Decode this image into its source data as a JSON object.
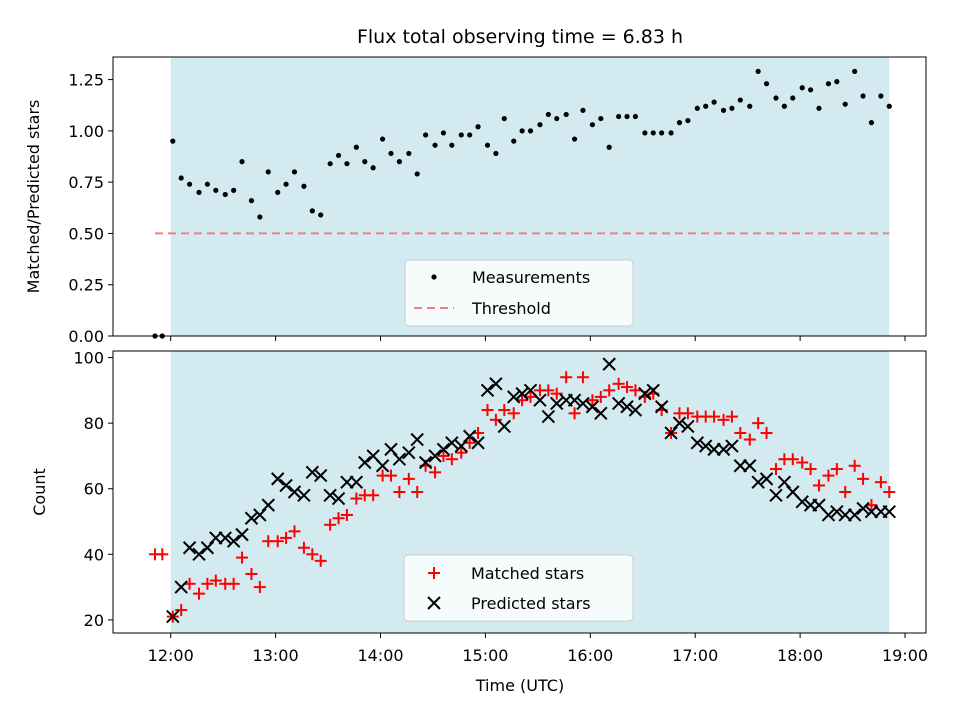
{
  "chart_data": [
    {
      "type": "scatter",
      "title": "Flux total observing time = 6.83 h",
      "xlabel": "",
      "ylabel": "Matched/Predicted stars",
      "xlim": [
        11.45,
        19.2
      ],
      "ylim": [
        0,
        1.36
      ],
      "yticks": [
        "0.00",
        "0.25",
        "0.50",
        "0.75",
        "1.00",
        "1.25"
      ],
      "ytick_values": [
        0,
        0.25,
        0.5,
        0.75,
        1.0,
        1.25
      ],
      "observing_window": [
        12.0,
        18.85
      ],
      "window_color": "#d3eaf1",
      "legend": {
        "placement": "lower center",
        "entries": [
          "Measurements",
          "Threshold"
        ]
      },
      "series": [
        {
          "name": "Measurements",
          "marker": "dot",
          "color": "#000000",
          "x": [
            11.85,
            11.92,
            12.02,
            12.1,
            12.18,
            12.27,
            12.35,
            12.43,
            12.52,
            12.6,
            12.68,
            12.77,
            12.85,
            12.93,
            13.02,
            13.1,
            13.18,
            13.27,
            13.35,
            13.43,
            13.52,
            13.6,
            13.68,
            13.77,
            13.85,
            13.93,
            14.02,
            14.1,
            14.18,
            14.27,
            14.35,
            14.43,
            14.52,
            14.6,
            14.68,
            14.77,
            14.85,
            14.93,
            15.02,
            15.1,
            15.18,
            15.27,
            15.35,
            15.43,
            15.52,
            15.6,
            15.68,
            15.77,
            15.85,
            15.93,
            16.02,
            16.1,
            16.18,
            16.27,
            16.35,
            16.43,
            16.52,
            16.6,
            16.68,
            16.77,
            16.85,
            16.93,
            17.02,
            17.1,
            17.18,
            17.27,
            17.35,
            17.43,
            17.52,
            17.6,
            17.68,
            17.77,
            17.85,
            17.93,
            18.02,
            18.1,
            18.18,
            18.27,
            18.35,
            18.43,
            18.52,
            18.6,
            18.68,
            18.77,
            18.85
          ],
          "y": [
            0.0,
            0.0,
            0.95,
            0.77,
            0.74,
            0.7,
            0.74,
            0.71,
            0.69,
            0.71,
            0.85,
            0.66,
            0.58,
            0.8,
            0.7,
            0.74,
            0.8,
            0.73,
            0.61,
            0.59,
            0.84,
            0.88,
            0.84,
            0.92,
            0.85,
            0.82,
            0.96,
            0.89,
            0.85,
            0.89,
            0.79,
            0.98,
            0.93,
            0.99,
            0.93,
            0.98,
            0.98,
            1.02,
            0.93,
            0.89,
            1.06,
            0.95,
            1.0,
            1.0,
            1.03,
            1.08,
            1.06,
            1.08,
            0.96,
            1.1,
            1.03,
            1.06,
            0.92,
            1.07,
            1.07,
            1.07,
            0.99,
            0.99,
            0.99,
            0.99,
            1.04,
            1.05,
            1.11,
            1.12,
            1.14,
            1.1,
            1.11,
            1.15,
            1.12,
            1.29,
            1.23,
            1.16,
            1.12,
            1.16,
            1.21,
            1.2,
            1.11,
            1.23,
            1.24,
            1.13,
            1.29,
            1.17,
            1.04,
            1.17,
            1.12
          ]
        },
        {
          "name": "Threshold",
          "style": "dashed",
          "color": "#f08080",
          "x": [
            11.85,
            18.85
          ],
          "y": [
            0.5,
            0.5
          ]
        }
      ]
    },
    {
      "type": "scatter",
      "title": "",
      "xlabel": "Time (UTC)",
      "ylabel": "Count",
      "xlim": [
        11.45,
        19.2
      ],
      "ylim": [
        16,
        102
      ],
      "xticks": [
        "12:00",
        "13:00",
        "14:00",
        "15:00",
        "16:00",
        "17:00",
        "18:00",
        "19:00"
      ],
      "xtick_values": [
        12,
        13,
        14,
        15,
        16,
        17,
        18,
        19
      ],
      "yticks": [
        "20",
        "40",
        "60",
        "80",
        "100"
      ],
      "ytick_values": [
        20,
        40,
        60,
        80,
        100
      ],
      "observing_window": [
        12.0,
        18.85
      ],
      "window_color": "#d3eaf1",
      "legend": {
        "placement": "lower center",
        "entries": [
          "Matched stars",
          "Predicted stars"
        ]
      },
      "series": [
        {
          "name": "Matched stars",
          "marker": "plus",
          "color": "#ff0000",
          "x": [
            11.85,
            11.92,
            12.02,
            12.1,
            12.18,
            12.27,
            12.35,
            12.43,
            12.52,
            12.6,
            12.68,
            12.77,
            12.85,
            12.93,
            13.02,
            13.1,
            13.18,
            13.27,
            13.35,
            13.43,
            13.52,
            13.6,
            13.68,
            13.77,
            13.85,
            13.93,
            14.02,
            14.1,
            14.18,
            14.27,
            14.35,
            14.43,
            14.52,
            14.6,
            14.68,
            14.77,
            14.85,
            14.93,
            15.02,
            15.1,
            15.18,
            15.27,
            15.35,
            15.43,
            15.52,
            15.6,
            15.68,
            15.77,
            15.85,
            15.93,
            16.02,
            16.1,
            16.18,
            16.27,
            16.35,
            16.43,
            16.52,
            16.6,
            16.68,
            16.77,
            16.85,
            16.93,
            17.02,
            17.1,
            17.18,
            17.27,
            17.35,
            17.43,
            17.52,
            17.6,
            17.68,
            17.77,
            17.85,
            17.93,
            18.02,
            18.1,
            18.18,
            18.27,
            18.35,
            18.43,
            18.52,
            18.6,
            18.68,
            18.77,
            18.85
          ],
          "y": [
            40,
            40,
            21,
            23,
            31,
            28,
            31,
            32,
            31,
            31,
            39,
            34,
            30,
            44,
            44,
            45,
            47,
            42,
            40,
            38,
            49,
            51,
            52,
            57,
            58,
            58,
            64,
            64,
            59,
            63,
            59,
            67,
            65,
            70,
            69,
            71,
            74,
            77,
            84,
            81,
            84,
            83,
            87,
            88,
            90,
            90,
            89,
            94,
            83,
            94,
            87,
            88,
            90,
            92,
            91,
            90,
            88,
            89,
            84,
            77,
            83,
            83,
            82,
            82,
            82,
            81,
            82,
            77,
            75,
            80,
            77,
            66,
            69,
            69,
            68,
            66,
            61,
            64,
            66,
            59,
            67,
            63,
            55,
            62,
            59
          ]
        },
        {
          "name": "Predicted stars",
          "marker": "x",
          "color": "#000000",
          "x": [
            12.02,
            12.1,
            12.18,
            12.27,
            12.35,
            12.43,
            12.52,
            12.6,
            12.68,
            12.77,
            12.85,
            12.93,
            13.02,
            13.1,
            13.18,
            13.27,
            13.35,
            13.43,
            13.52,
            13.6,
            13.68,
            13.77,
            13.85,
            13.93,
            14.02,
            14.1,
            14.18,
            14.27,
            14.35,
            14.43,
            14.52,
            14.6,
            14.68,
            14.77,
            14.85,
            14.93,
            15.02,
            15.1,
            15.18,
            15.27,
            15.35,
            15.43,
            15.52,
            15.6,
            15.68,
            15.77,
            15.85,
            15.93,
            16.02,
            16.1,
            16.18,
            16.27,
            16.35,
            16.43,
            16.52,
            16.6,
            16.68,
            16.77,
            16.85,
            16.93,
            17.02,
            17.1,
            17.18,
            17.27,
            17.35,
            17.43,
            17.52,
            17.6,
            17.68,
            17.77,
            17.85,
            17.93,
            18.02,
            18.1,
            18.18,
            18.27,
            18.35,
            18.43,
            18.52,
            18.6,
            18.68,
            18.77,
            18.85
          ],
          "y": [
            21,
            30,
            42,
            40,
            42,
            45,
            45,
            44,
            46,
            51,
            52,
            55,
            63,
            61,
            59,
            58,
            65,
            64,
            58,
            57,
            62,
            62,
            68,
            70,
            67,
            72,
            69,
            71,
            75,
            68,
            70,
            72,
            74,
            73,
            76,
            74,
            90,
            92,
            79,
            88,
            89,
            90,
            87,
            82,
            86,
            87,
            87,
            86,
            85,
            83,
            98,
            86,
            85,
            84,
            89,
            90,
            85,
            77,
            80,
            79,
            74,
            73,
            72,
            72,
            73,
            67,
            67,
            62,
            63,
            58,
            62,
            59,
            56,
            55,
            55,
            52,
            53,
            52,
            52,
            54,
            53,
            53,
            53
          ]
        }
      ]
    }
  ]
}
